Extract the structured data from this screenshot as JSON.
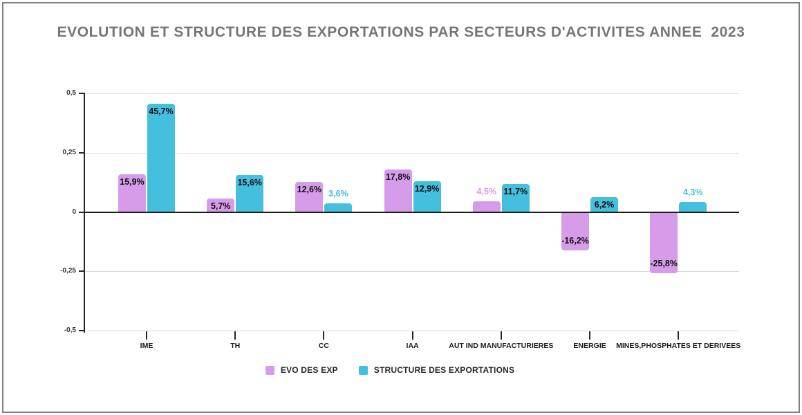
{
  "title": "EVOLUTION ET STRUCTURE DES EXPORTATIONS PAR SECTEURS D'ACTIVITES ANNEE  2023",
  "colors": {
    "evo_fill": "#d79ce9",
    "structure_fill": "#45bfde",
    "title_text": "#767676",
    "grid": "#d9d9d9",
    "zero_line": "#1a1a1a",
    "axis": "#262626",
    "inside_label": "#111111"
  },
  "legend": [
    {
      "name": "EVO DES EXP",
      "color": "#d79ce9"
    },
    {
      "name": "STRUCTURE DES EXPORTATIONS",
      "color": "#45bfde"
    }
  ],
  "y_axis": {
    "tick_labels": [
      "0,5",
      "0,25",
      "0",
      "-0,25",
      "-0,5"
    ],
    "tick_values": [
      0.5,
      0.25,
      0,
      -0.25,
      -0.5
    ],
    "min": -0.5,
    "max": 0.5
  },
  "chart_data": {
    "type": "bar",
    "title": "EVOLUTION ET STRUCTURE DES EXPORTATIONS PAR SECTEURS D'ACTIVITES ANNEE  2023",
    "categories": [
      "IME",
      "TH",
      "CC",
      "IAA",
      "AUT IND MANUFACTURIERES",
      "ENERGIE",
      "MINES,PHOSPHATES ET DERIVEES"
    ],
    "series": [
      {
        "name": "EVO DES EXP",
        "color": "#d79ce9",
        "values_pct": [
          15.9,
          5.7,
          12.6,
          17.8,
          4.5,
          -16.2,
          -25.8
        ],
        "labels": [
          "15,9%",
          "5,7%",
          "12,6%",
          "17,8%",
          "4,5%",
          "-16,2%",
          "-25,8%"
        ]
      },
      {
        "name": "STRUCTURE DES EXPORTATIONS",
        "color": "#45bfde",
        "values_pct": [
          45.7,
          15.6,
          3.6,
          12.9,
          11.7,
          6.2,
          4.3
        ],
        "labels": [
          "45,7%",
          "15,6%",
          "3,6%",
          "12,9%",
          "11,7%",
          "6,2%",
          "4,3%"
        ]
      }
    ],
    "ylim": [
      -0.5,
      0.5
    ],
    "grid": true,
    "legend_position": "bottom"
  }
}
